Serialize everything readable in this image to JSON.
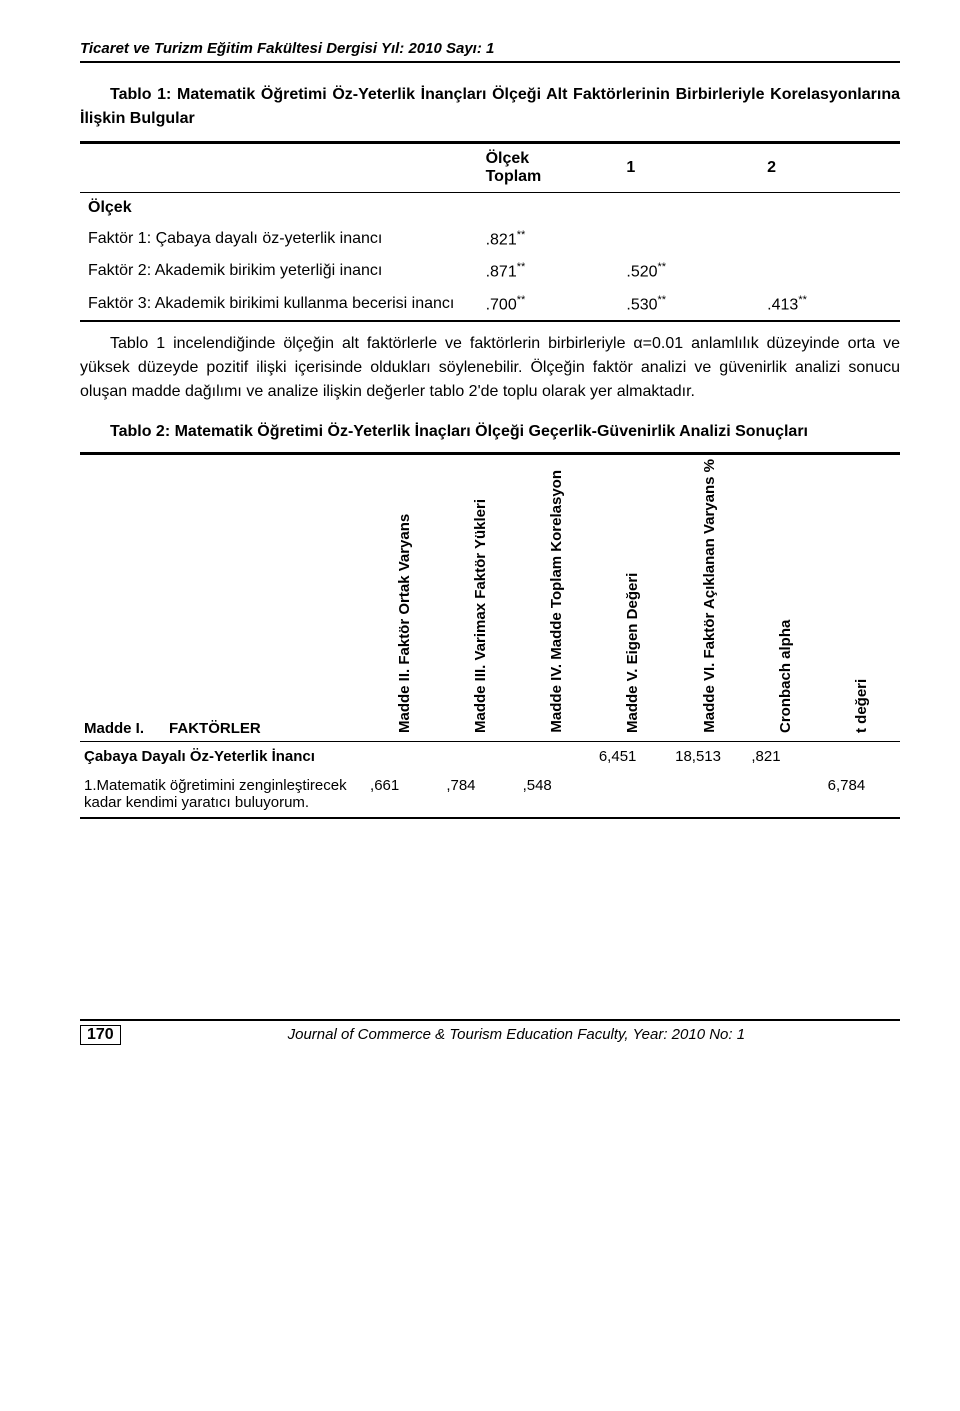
{
  "header": {
    "journal_line": "Ticaret ve Turizm Eğitim Fakültesi Dergisi Yıl: 2010 Sayı: 1"
  },
  "table1": {
    "title": "Tablo 1: Matematik Öğretimi Öz-Yeterlik İnançları Ölçeği Alt Faktörlerinin Birbirleriyle Korelasyonlarına İlişkin Bulgular",
    "head_c2a": "Ölçek",
    "head_c2b": "Toplam",
    "head_c3": "1",
    "head_c4": "2",
    "row0_label": "Ölçek",
    "row1_label": "Faktör 1: Çabaya dayalı öz-yeterlik inancı",
    "row1_v1": ".821",
    "row2_label": "Faktör 2: Akademik birikim yeterliği inancı",
    "row2_v1": ".871",
    "row2_v2": ".520",
    "row3_label": "Faktör 3: Akademik birikimi kullanma becerisi inancı",
    "row3_v1": ".700",
    "row3_v2": ".530",
    "row3_v3": ".413",
    "ss": "**"
  },
  "para1": "Tablo 1 incelendiğinde ölçeğin alt faktörlerle ve faktörlerin birbirleriyle α=0.01 anlamlılık düzeyinde orta ve yüksek düzeyde pozitif ilişki içerisinde oldukları söylenebilir. Ölçeğin faktör analizi ve güvenirlik analizi sonucu oluşan madde dağılımı ve analize ilişkin değerler tablo 2'de toplu olarak yer almaktadır.",
  "table2": {
    "title": "Tablo 2: Matematik Öğretimi Öz-Yeterlik İnaçları Ölçeği Geçerlik-Güvenirlik Analizi Sonuçları",
    "h1a": "Madde I.",
    "h1b": "FAKTÖRLER",
    "h2": "Madde II.   Faktör Ortak Varyans",
    "h3": "Madde III.   Varimax Faktör Yükleri",
    "h4": "Madde IV.   Madde Toplam Korelasyon",
    "h5": "Madde V.   Eigen Değeri",
    "h6": "Madde VI.   Faktör Açıklanan Varyans %",
    "h7": "Cronbach alpha",
    "h8": "t değeri",
    "row1_label": "Çabaya Dayalı Öz-Yeterlik İnancı",
    "row1_eigen": "6,451",
    "row1_var": "18,513",
    "row1_alpha": ",821",
    "row2_label": "1.Matematik öğretimini zenginleştirecek kadar kendimi yaratıcı buluyorum.",
    "row2_c2": ",661",
    "row2_c3": ",784",
    "row2_c4": ",548",
    "row2_t": "6,784"
  },
  "footer": {
    "page": "170",
    "text": "Journal of Commerce & Tourism Education Faculty, Year: 2010 No: 1"
  }
}
